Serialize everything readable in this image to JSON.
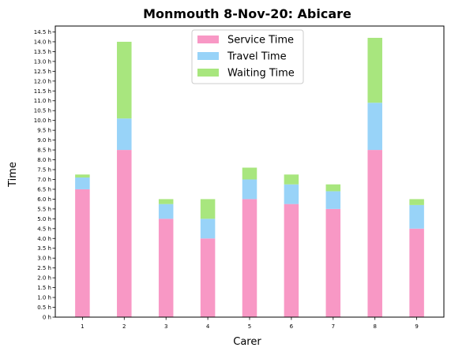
{
  "chart_data": {
    "type": "bar",
    "stacked": true,
    "title": "Monmouth 8-Nov-20: Abicare",
    "xlabel": "Carer",
    "ylabel": "Time",
    "categories": [
      "1",
      "2",
      "3",
      "4",
      "5",
      "6",
      "7",
      "8",
      "9"
    ],
    "series": [
      {
        "name": "Service Time",
        "color": "#f898c5",
        "values": [
          6.5,
          8.5,
          5.0,
          4.0,
          6.0,
          5.75,
          5.5,
          8.5,
          4.5
        ]
      },
      {
        "name": "Travel Time",
        "color": "#98d3f8",
        "values": [
          0.6,
          1.6,
          0.75,
          1.0,
          1.0,
          1.0,
          0.9,
          2.4,
          1.2
        ]
      },
      {
        "name": "Waiting Time",
        "color": "#a8e67e",
        "values": [
          0.15,
          3.9,
          0.25,
          1.0,
          0.6,
          0.5,
          0.35,
          3.3,
          0.3
        ]
      }
    ],
    "ylim": [
      0,
      14.8
    ],
    "yticks": [
      0,
      0.5,
      1,
      1.5,
      2,
      2.5,
      3,
      3.5,
      4,
      4.5,
      5,
      5.5,
      6,
      6.5,
      7,
      7.5,
      8,
      8.5,
      9,
      9.5,
      10,
      10.5,
      11,
      11.5,
      12,
      12.5,
      13,
      13.5,
      14,
      14.5
    ],
    "ytick_labels": [
      "0 h",
      "0.5 h",
      "1.0 h",
      "1.5 h",
      "2.0 h",
      "2.5 h",
      "3.0 h",
      "3.5 h",
      "4.0 h",
      "4.5 h",
      "5.0 h",
      "5.5 h",
      "6.0 h",
      "6.5 h",
      "7.0 h",
      "7.5 h",
      "8.0 h",
      "8.5 h",
      "9.0 h",
      "9.5 h",
      "10.0 h",
      "10.5 h",
      "11.0 h",
      "11.5 h",
      "12.0 h",
      "12.5 h",
      "13.0 h",
      "13.5 h",
      "14.0 h",
      "14.5 h"
    ],
    "xlim": [
      0.35,
      9.65
    ],
    "grid": false,
    "legend_position": "top-center"
  }
}
